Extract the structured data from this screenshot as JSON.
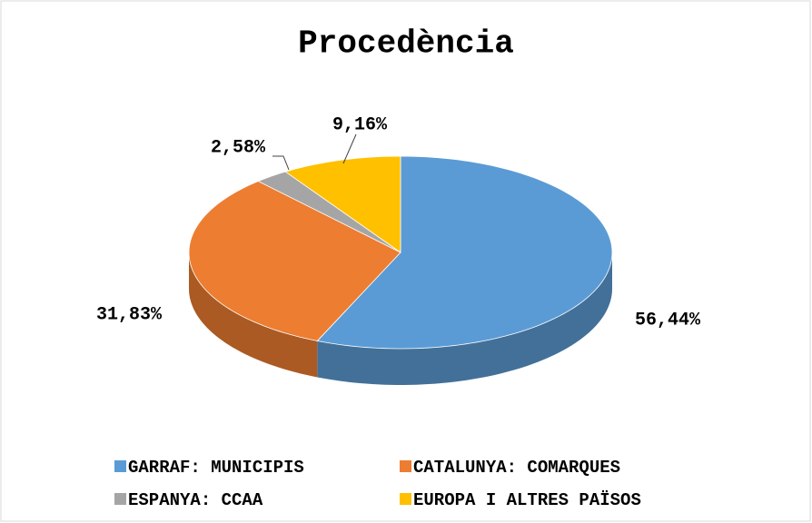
{
  "chart_data": {
    "type": "pie3d",
    "title": "Procedència",
    "categories": [
      "GARRAF: MUNICIPIS",
      "CATALUNYA: COMARQUES",
      "ESPANYA: CCAA",
      "EUROPA I ALTRES PAÏSOS"
    ],
    "values": [
      56.44,
      31.83,
      2.58,
      9.16
    ],
    "value_labels": [
      "56,44%",
      "31,83%",
      "2,58%",
      "9,16%"
    ],
    "colors": [
      "#5b9bd5",
      "#ed7d31",
      "#a5a5a5",
      "#ffc000"
    ],
    "legend": "bottom"
  }
}
